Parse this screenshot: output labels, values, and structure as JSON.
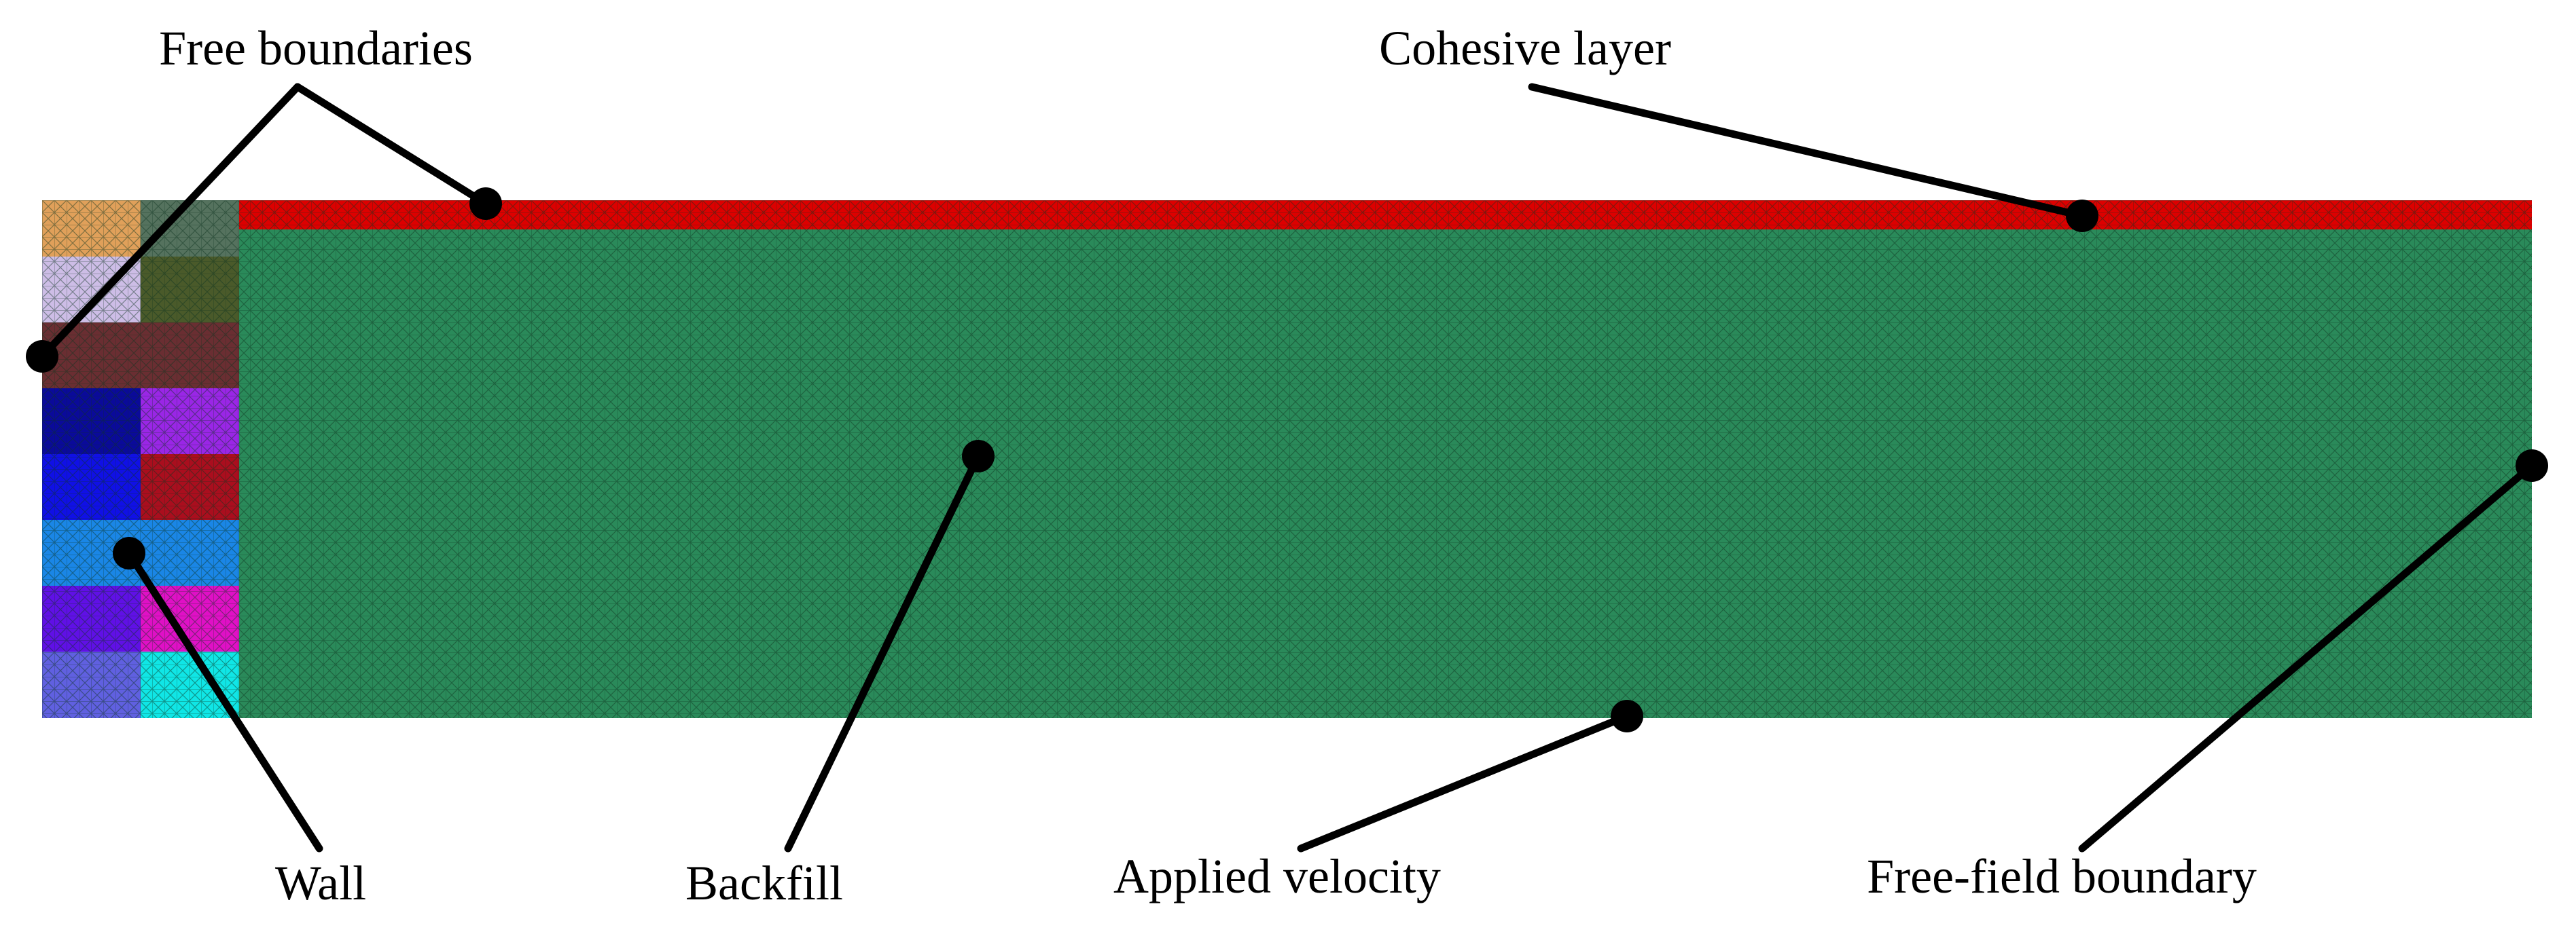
{
  "labels": {
    "free_boundaries": "Free boundaries",
    "cohesive_layer": "Cohesive layer",
    "wall": "Wall",
    "backfill": "Backfill",
    "applied_velocity": "Applied velocity",
    "free_field_boundary": "Free-field boundary"
  },
  "colors": {
    "backfill": "#2a8a5a",
    "cohesive_layer": "#dd0000",
    "mesh_line": "#0d3320",
    "leader": "#000000",
    "wall_blocks": [
      [
        "#e0a05a",
        "#55725e"
      ],
      [
        "#cdbde6",
        "#4a5a2a"
      ],
      [
        "#6a2e32",
        "#6a2e32"
      ],
      [
        "#0a0a9a",
        "#9a26e6"
      ],
      [
        "#1010e6",
        "#aa0e1e"
      ],
      [
        "#1a86e6",
        "#1a86e6"
      ],
      [
        "#6010e6",
        "#e010c6"
      ],
      [
        "#6060e0",
        "#10e6e6"
      ]
    ]
  }
}
